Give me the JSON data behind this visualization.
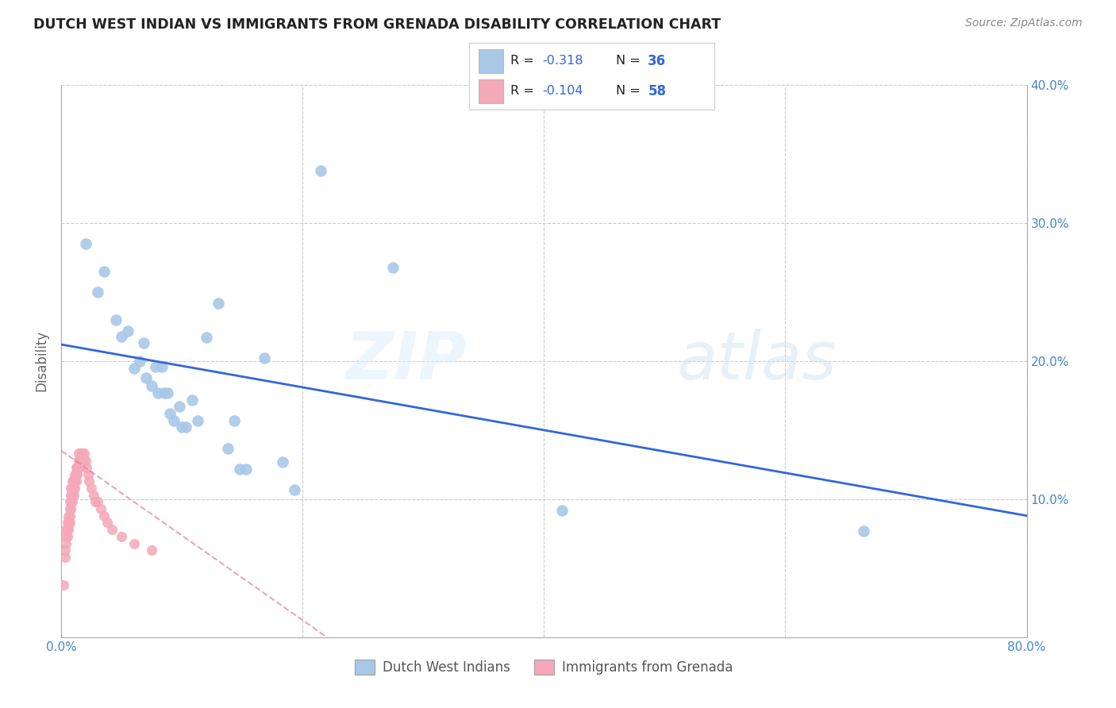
{
  "title": "DUTCH WEST INDIAN VS IMMIGRANTS FROM GRENADA DISABILITY CORRELATION CHART",
  "source": "Source: ZipAtlas.com",
  "ylabel": "Disability",
  "xlim": [
    0,
    0.8
  ],
  "ylim": [
    0,
    0.4
  ],
  "xticks": [
    0.0,
    0.1,
    0.2,
    0.3,
    0.4,
    0.5,
    0.6,
    0.7,
    0.8
  ],
  "xticklabels": [
    "0.0%",
    "",
    "",
    "",
    "",
    "",
    "",
    "",
    "80.0%"
  ],
  "yticks": [
    0.0,
    0.1,
    0.2,
    0.3,
    0.4
  ],
  "yticklabels_right": [
    "",
    "10.0%",
    "20.0%",
    "30.0%",
    "40.0%"
  ],
  "legend_r_blue": "-0.318",
  "legend_n_blue": "36",
  "legend_r_pink": "-0.104",
  "legend_n_pink": "58",
  "blue_color": "#a8c8e8",
  "pink_color": "#f4a8b8",
  "trend_blue_color": "#3366dd",
  "trend_pink_color": "#dd7799",
  "grid_color": "#cccccc",
  "watermark_zip": "ZIP",
  "watermark_atlas": "atlas",
  "blue_scatter_x": [
    0.02,
    0.03,
    0.035,
    0.045,
    0.05,
    0.055,
    0.06,
    0.065,
    0.068,
    0.07,
    0.075,
    0.078,
    0.08,
    0.083,
    0.085,
    0.088,
    0.09,
    0.093,
    0.098,
    0.1,
    0.103,
    0.108,
    0.113,
    0.12,
    0.13,
    0.138,
    0.143,
    0.148,
    0.153,
    0.168,
    0.183,
    0.193,
    0.215,
    0.275,
    0.415,
    0.665
  ],
  "blue_scatter_y": [
    0.285,
    0.25,
    0.265,
    0.23,
    0.218,
    0.222,
    0.195,
    0.2,
    0.213,
    0.188,
    0.182,
    0.196,
    0.177,
    0.196,
    0.177,
    0.177,
    0.162,
    0.157,
    0.167,
    0.152,
    0.152,
    0.172,
    0.157,
    0.217,
    0.242,
    0.137,
    0.157,
    0.122,
    0.122,
    0.202,
    0.127,
    0.107,
    0.338,
    0.268,
    0.092,
    0.077
  ],
  "pink_scatter_x": [
    0.002,
    0.003,
    0.003,
    0.004,
    0.004,
    0.004,
    0.005,
    0.005,
    0.005,
    0.006,
    0.006,
    0.006,
    0.007,
    0.007,
    0.007,
    0.007,
    0.008,
    0.008,
    0.008,
    0.008,
    0.009,
    0.009,
    0.009,
    0.009,
    0.01,
    0.01,
    0.01,
    0.011,
    0.011,
    0.011,
    0.012,
    0.012,
    0.012,
    0.013,
    0.013,
    0.014,
    0.014,
    0.015,
    0.015,
    0.016,
    0.017,
    0.018,
    0.019,
    0.02,
    0.021,
    0.022,
    0.023,
    0.025,
    0.027,
    0.028,
    0.03,
    0.033,
    0.035,
    0.038,
    0.042,
    0.05,
    0.06,
    0.075
  ],
  "pink_scatter_y": [
    0.038,
    0.058,
    0.063,
    0.068,
    0.073,
    0.078,
    0.073,
    0.078,
    0.083,
    0.078,
    0.082,
    0.087,
    0.083,
    0.088,
    0.093,
    0.098,
    0.093,
    0.098,
    0.103,
    0.108,
    0.098,
    0.103,
    0.108,
    0.113,
    0.103,
    0.108,
    0.113,
    0.108,
    0.113,
    0.118,
    0.113,
    0.118,
    0.123,
    0.118,
    0.123,
    0.128,
    0.133,
    0.123,
    0.128,
    0.133,
    0.133,
    0.128,
    0.133,
    0.128,
    0.123,
    0.118,
    0.113,
    0.108,
    0.103,
    0.098,
    0.098,
    0.093,
    0.088,
    0.083,
    0.078,
    0.073,
    0.068,
    0.063
  ],
  "blue_trend_x": [
    0.0,
    0.8
  ],
  "blue_trend_y": [
    0.212,
    0.088
  ],
  "pink_trend_x": [
    0.0,
    0.22
  ],
  "pink_trend_y": [
    0.135,
    0.0
  ],
  "background_color": "#ffffff",
  "legend_label_blue": "Dutch West Indians",
  "legend_label_pink": "Immigrants from Grenada"
}
